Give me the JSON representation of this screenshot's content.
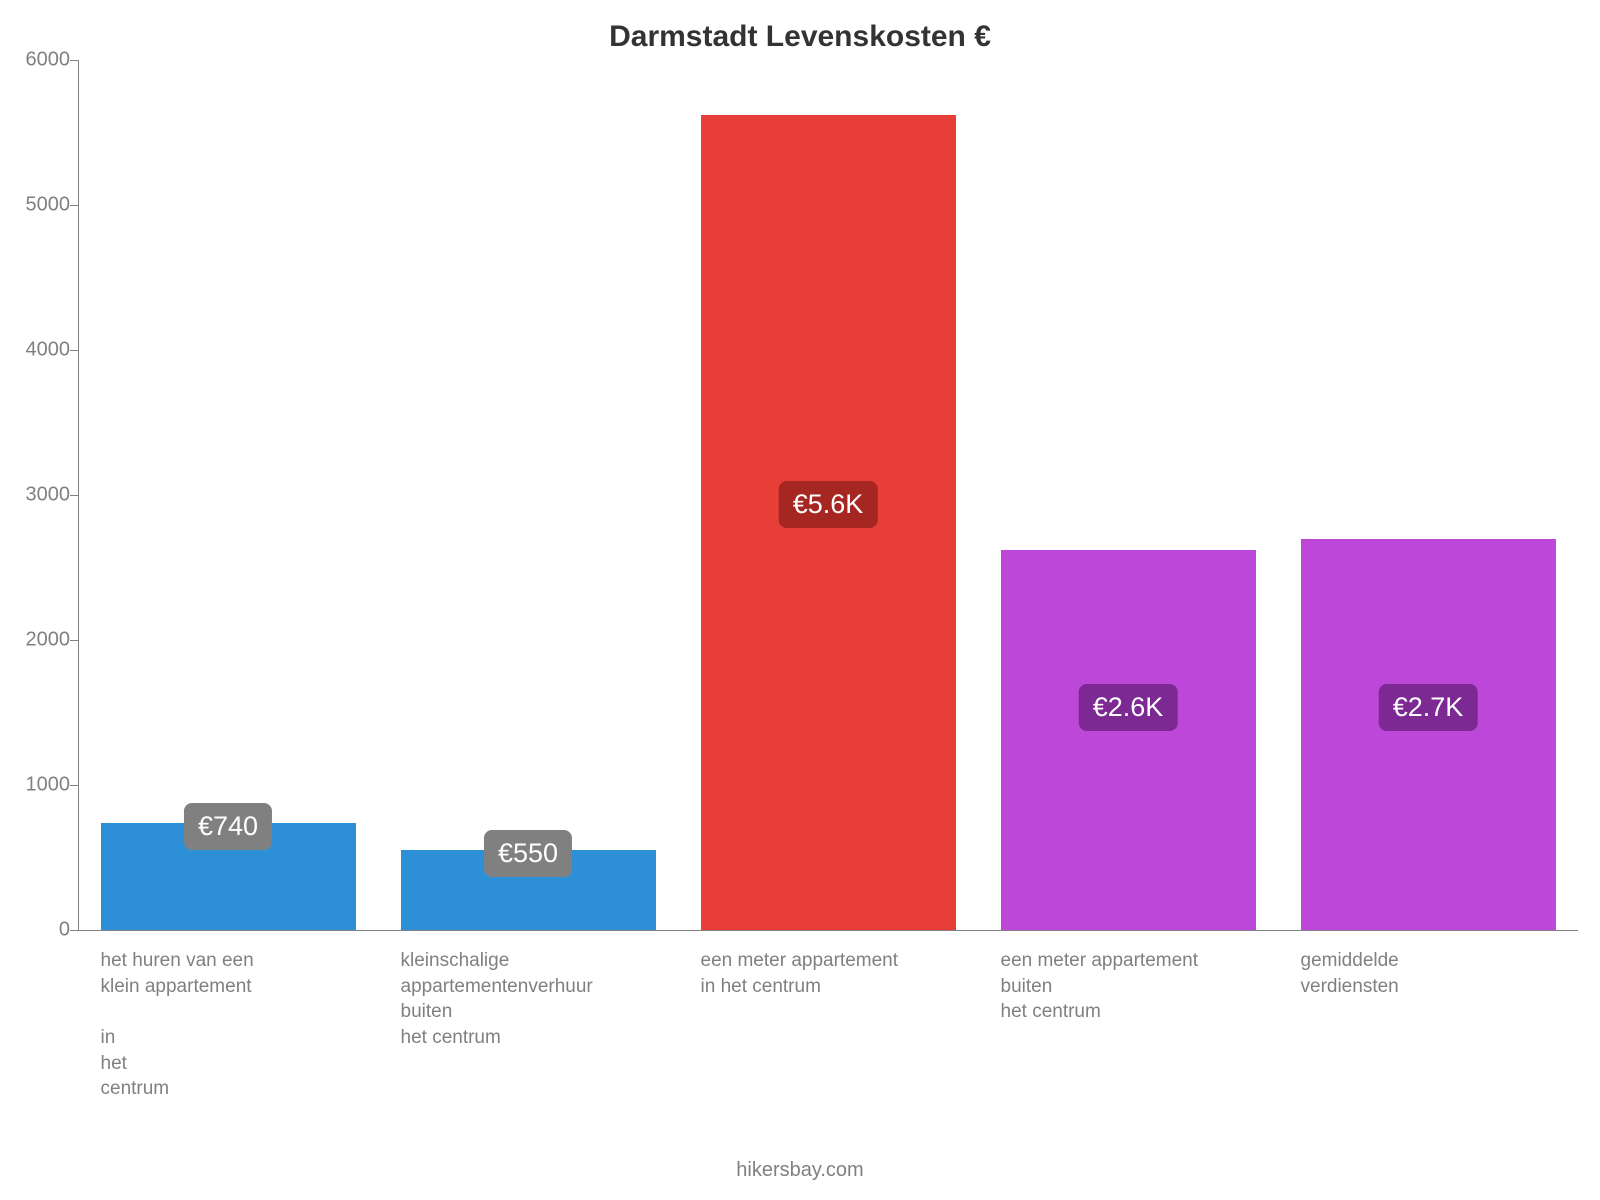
{
  "chart": {
    "type": "bar",
    "title": "Darmstadt Levenskosten €",
    "title_fontsize": 30,
    "title_color": "#333333",
    "footer": "hikersbay.com",
    "footer_fontsize": 20,
    "background_color": "#ffffff",
    "axis_color": "#808080",
    "ylim": [
      0,
      6000
    ],
    "ytick_step": 1000,
    "y_labels": [
      "0",
      "1000",
      "2000",
      "3000",
      "4000",
      "5000",
      "6000"
    ],
    "y_label_fontsize": 20,
    "x_label_fontsize": 19,
    "x_label_color": "#808080",
    "bar_width_ratio": 0.85,
    "badge_fontsize": 27,
    "bars": [
      {
        "label": "het huren van een\nklein appartement\n\nin\nhet\ncentrum",
        "value": 740,
        "display": "€740",
        "color": "#2d8fd6",
        "badge_bg": "#808080"
      },
      {
        "label": "kleinschalige\nappartementenverhuur\nbuiten\nhet centrum",
        "value": 550,
        "display": "€550",
        "color": "#2d8fd6",
        "badge_bg": "#808080"
      },
      {
        "label": "een meter appartement\nin het centrum",
        "value": 5620,
        "display": "€5.6K",
        "color": "#e73f38",
        "badge_bg": "#a62622"
      },
      {
        "label": "een meter appartement\nbuiten\nhet centrum",
        "value": 2620,
        "display": "€2.6K",
        "color": "#bc47d9",
        "badge_bg": "#7c2993"
      },
      {
        "label": "gemiddelde\nverdiensten",
        "value": 2700,
        "display": "€2.7K",
        "color": "#bc47d9",
        "badge_bg": "#7c2993"
      }
    ]
  }
}
